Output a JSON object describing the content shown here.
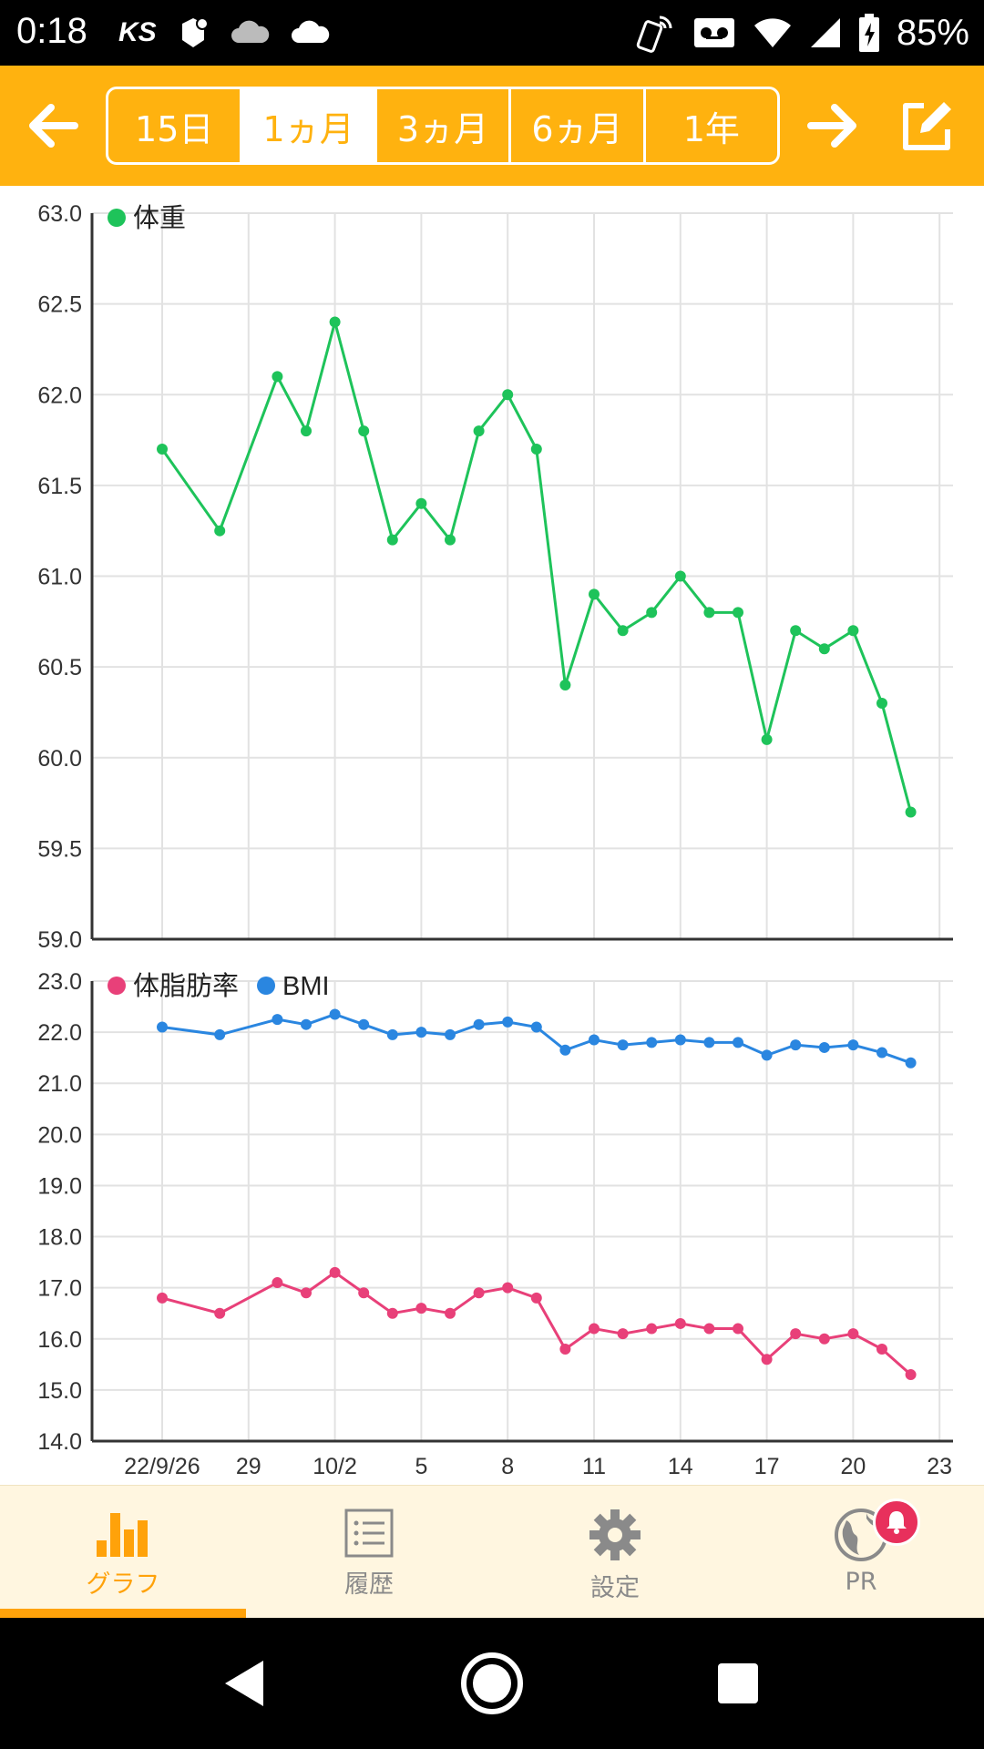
{
  "status_bar": {
    "time": "0:18",
    "battery": "85%",
    "left_icons": [
      "ks-icon",
      "notification-app-icon",
      "cloud-outline-icon",
      "cloud-icon"
    ],
    "right_icons": [
      "nfc-phone-icon",
      "voicemail-icon",
      "wifi-icon",
      "signal-icon",
      "battery-charging-icon"
    ]
  },
  "toolbar": {
    "prev_icon": "arrow-left-icon",
    "next_icon": "arrow-right-icon",
    "edit_icon": "edit-icon",
    "ranges": [
      "15日",
      "1ヵ月",
      "3ヵ月",
      "6ヵ月",
      "1年"
    ],
    "selected_range": "1ヵ月",
    "accent": "#FFB20F"
  },
  "chart_data": [
    {
      "type": "line",
      "legend": [
        "体重"
      ],
      "ylim": [
        59.0,
        63.0
      ],
      "yticks": [
        "63.0",
        "62.5",
        "62.0",
        "61.5",
        "61.0",
        "60.5",
        "60.0",
        "59.5",
        "59.0"
      ],
      "grid": true,
      "legend_placement": "top-left",
      "series": [
        {
          "name": "体重",
          "color": "#1EC35A",
          "x": [
            "2022-09-26",
            "2022-09-28",
            "2022-09-30",
            "2022-10-01",
            "2022-10-02",
            "2022-10-03",
            "2022-10-04",
            "2022-10-05",
            "2022-10-06",
            "2022-10-07",
            "2022-10-08",
            "2022-10-09",
            "2022-10-10",
            "2022-10-11",
            "2022-10-12",
            "2022-10-13",
            "2022-10-14",
            "2022-10-15",
            "2022-10-16",
            "2022-10-17",
            "2022-10-18",
            "2022-10-19",
            "2022-10-20",
            "2022-10-21",
            "2022-10-22"
          ],
          "values": [
            61.7,
            61.25,
            62.1,
            61.8,
            62.4,
            61.8,
            61.2,
            61.4,
            61.2,
            61.8,
            62.0,
            61.7,
            60.4,
            60.9,
            60.7,
            60.8,
            61.0,
            60.8,
            60.8,
            60.1,
            60.7,
            60.6,
            60.7,
            60.3,
            59.7
          ]
        }
      ]
    },
    {
      "type": "line",
      "legend": [
        "体脂肪率",
        "BMI"
      ],
      "ylim": [
        14.0,
        23.0
      ],
      "yticks": [
        "23.0",
        "22.0",
        "21.0",
        "20.0",
        "19.0",
        "18.0",
        "17.0",
        "16.0",
        "15.0",
        "14.0"
      ],
      "grid": true,
      "legend_placement": "top-left",
      "xticks": [
        "22/9/26",
        "29",
        "10/2",
        "5",
        "8",
        "11",
        "14",
        "17",
        "20",
        "23"
      ],
      "series": [
        {
          "name": "体脂肪率",
          "color": "#E84079",
          "x": [
            "2022-09-26",
            "2022-09-28",
            "2022-09-30",
            "2022-10-01",
            "2022-10-02",
            "2022-10-03",
            "2022-10-04",
            "2022-10-05",
            "2022-10-06",
            "2022-10-07",
            "2022-10-08",
            "2022-10-09",
            "2022-10-10",
            "2022-10-11",
            "2022-10-12",
            "2022-10-13",
            "2022-10-14",
            "2022-10-15",
            "2022-10-16",
            "2022-10-17",
            "2022-10-18",
            "2022-10-19",
            "2022-10-20",
            "2022-10-21",
            "2022-10-22"
          ],
          "values": [
            16.8,
            16.5,
            17.1,
            16.9,
            17.3,
            16.9,
            16.5,
            16.6,
            16.5,
            16.9,
            17.0,
            16.8,
            15.8,
            16.2,
            16.1,
            16.2,
            16.3,
            16.2,
            16.2,
            15.6,
            16.1,
            16.0,
            16.1,
            15.8,
            15.3
          ]
        },
        {
          "name": "BMI",
          "color": "#2A86E0",
          "x": [
            "2022-09-26",
            "2022-09-28",
            "2022-09-30",
            "2022-10-01",
            "2022-10-02",
            "2022-10-03",
            "2022-10-04",
            "2022-10-05",
            "2022-10-06",
            "2022-10-07",
            "2022-10-08",
            "2022-10-09",
            "2022-10-10",
            "2022-10-11",
            "2022-10-12",
            "2022-10-13",
            "2022-10-14",
            "2022-10-15",
            "2022-10-16",
            "2022-10-17",
            "2022-10-18",
            "2022-10-19",
            "2022-10-20",
            "2022-10-21",
            "2022-10-22"
          ],
          "values": [
            22.1,
            21.95,
            22.25,
            22.15,
            22.35,
            22.15,
            21.95,
            22.0,
            21.95,
            22.15,
            22.2,
            22.1,
            21.65,
            21.85,
            21.75,
            21.8,
            21.85,
            21.8,
            21.8,
            21.55,
            21.75,
            21.7,
            21.75,
            21.6,
            21.4
          ]
        }
      ]
    }
  ],
  "bottom_nav": [
    {
      "label": "グラフ",
      "icon": "bar-chart-icon",
      "active": true
    },
    {
      "label": "履歴",
      "icon": "list-icon",
      "active": false
    },
    {
      "label": "設定",
      "icon": "gear-icon",
      "active": false
    },
    {
      "label": "PR",
      "icon": "globe-icon",
      "active": false,
      "badge_icon": "bell-icon"
    }
  ],
  "system_nav": {
    "back_icon": "back-triangle-icon",
    "home_icon": "home-circle-icon",
    "recents_icon": "recents-square-icon"
  }
}
